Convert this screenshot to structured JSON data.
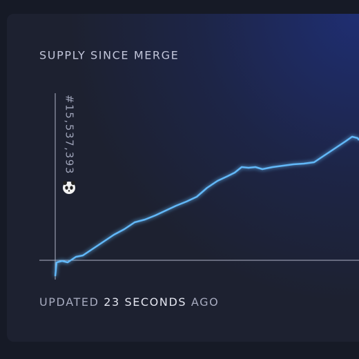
{
  "chart_data": {
    "type": "line",
    "title": "SUPPLY SINCE MERGE",
    "annotation": "#15,537,393",
    "footer": [
      "UPDATED",
      "23 SECONDS",
      "AGO"
    ],
    "x": [
      0,
      2,
      10,
      18,
      30,
      40,
      55,
      70,
      85,
      100,
      115,
      130,
      145,
      160,
      175,
      190,
      205,
      220,
      235,
      250,
      260,
      270,
      280,
      290,
      300,
      315,
      330,
      345,
      360,
      375,
      390,
      405,
      420,
      430,
      438,
      440
    ],
    "series": [
      {
        "color": "#62b8f8",
        "values": [
          -23,
          -3,
          -1,
          -3,
          5,
          7,
          17,
          27,
          37,
          45,
          55,
          59,
          65,
          72,
          79,
          85,
          92,
          105,
          115,
          122,
          127,
          135,
          134,
          135,
          132,
          135,
          137,
          139,
          140,
          142,
          152,
          162,
          172,
          179,
          177,
          174
        ]
      }
    ],
    "xlim": [
      0,
      440
    ],
    "ylim": [
      -28,
      277
    ]
  }
}
